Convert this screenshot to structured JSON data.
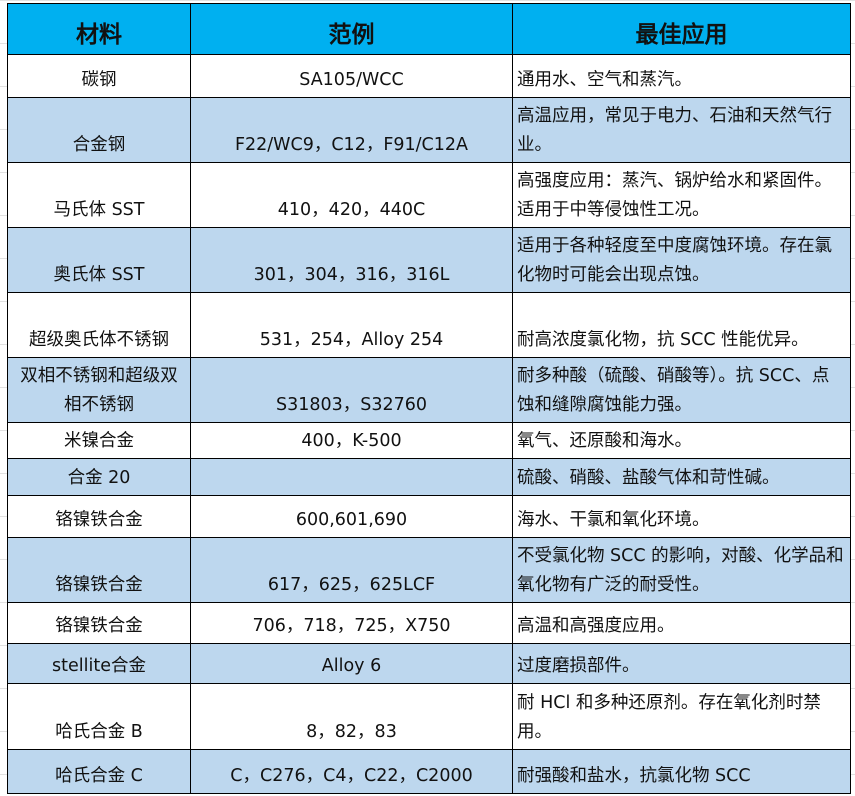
{
  "colors": {
    "header": "#00B0F0",
    "alt_row": "#BDD7EE"
  },
  "headers": [
    "材料",
    "范例",
    "最佳应用"
  ],
  "rows": [
    {
      "material": "碳钢",
      "example": "SA105/WCC",
      "application": "通用水、空气和蒸汽。"
    },
    {
      "material": "合金钢",
      "example": "F22/WC9，C12，F91/C12A",
      "application": "高温应用，常见于电力、石油和天然气行业。"
    },
    {
      "material": "马氏体 SST",
      "example": "410，420，440C",
      "application": "高强度应用：蒸汽、锅炉给水和紧固件。适用于中等侵蚀性工况。"
    },
    {
      "material": "奥氏体 SST",
      "example": "301，304，316，316L",
      "application": "适用于各种轻度至中度腐蚀环境。存在氯化物时可能会出现点蚀。"
    },
    {
      "material": "超级奥氏体不锈钢",
      "example": "531，254，Alloy 254",
      "application": "耐高浓度氯化物，抗 SCC 性能优异。"
    },
    {
      "material": "双相不锈钢和超级双相不锈钢",
      "example": "S31803，S32760",
      "application": "耐多种酸（硫酸、硝酸等）。抗 SCC、点蚀和缝隙腐蚀能力强。"
    },
    {
      "material": "米镍合金",
      "example": "400，K-500",
      "application": "氧气、还原酸和海水。"
    },
    {
      "material": "合金 20",
      "example": "",
      "application": "硫酸、硝酸、盐酸气体和苛性碱。"
    },
    {
      "material": "铬镍铁合金",
      "example": "600,601,690",
      "application": "海水、干氯和氧化环境。"
    },
    {
      "material": "铬镍铁合金",
      "example": "617，625，625LCF",
      "application": "不受氯化物 SCC 的影响，对酸、化学品和氧化物有广泛的耐受性。"
    },
    {
      "material": "铬镍铁合金",
      "example": "706，718，725，X750",
      "application": "高温和高强度应用。"
    },
    {
      "material": "stellite合金",
      "example": "Alloy 6",
      "application": "过度磨损部件。"
    },
    {
      "material": "哈氏合金 B",
      "example": "8，82，83",
      "application": "耐 HCl 和多种还原剂。存在氧化剂时禁用。"
    },
    {
      "material": "哈氏合金 C",
      "example": "C，C276，C4，C22，C2000",
      "application": "耐强酸和盐水，抗氯化物 SCC"
    }
  ]
}
